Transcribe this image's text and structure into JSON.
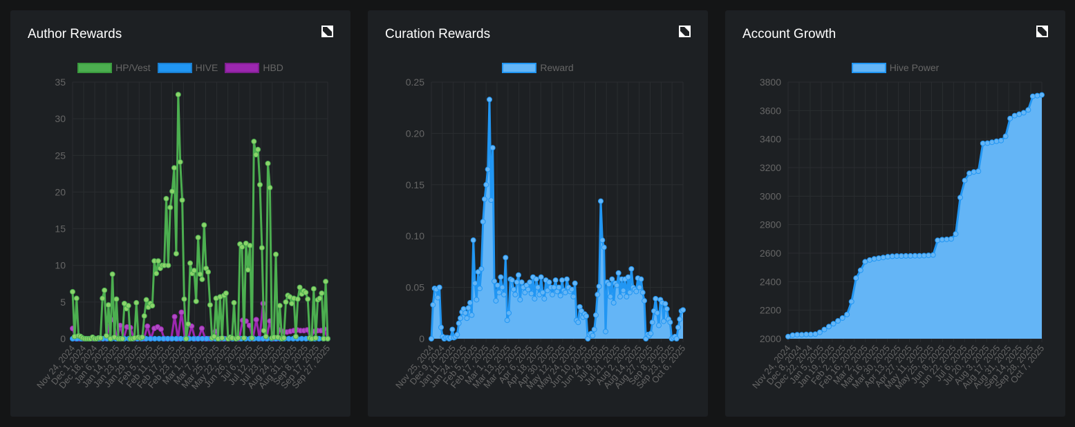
{
  "colors": {
    "green": "#4caf50",
    "green_point": "#8bd36a",
    "blue": "#2196f3",
    "blue_fill": "#64b5f6",
    "purple": "#9c27b0",
    "grid": "#2a2d30",
    "tick": "#666666"
  },
  "chart_data": [
    {
      "type": "line",
      "title": "Author Rewards",
      "ylim": [
        0,
        35
      ],
      "yticks": [
        0,
        5,
        10,
        15,
        20,
        25,
        30,
        35
      ],
      "legend_position": "top",
      "xtick_labels": [
        "Nov 24, 2024",
        "Dec 1, 2024",
        "Dec 18, 2024",
        "Jan 6, 2025",
        "Jan 14, 2025",
        "Jan 23, 2025",
        "Jan 29, 2025",
        "Feb 5, 2025",
        "Feb 11, 2025",
        "Feb 17, 2025",
        "Feb 23, 2025",
        "Mar 1, 2025",
        "Mar 7, 2025",
        "Mar 25, 2025",
        "May 22, 2025",
        "Jun 26, 2025",
        "Jul 6, 2025",
        "Jul 12, 2025",
        "Jul 23, 2025",
        "Aug 24, 2025",
        "Aug 31, 2025",
        "Sep 8, 2025",
        "Sep 17, 2025",
        "Sep 27, 2025"
      ],
      "series": [
        {
          "name": "HP/Vest",
          "color": "#4caf50",
          "values": [
            6.4,
            0.3,
            5.5,
            0.4,
            0.3,
            0.1,
            0,
            0,
            0,
            0,
            0.2,
            0,
            0,
            0.1,
            0.1,
            5.5,
            6.6,
            0.4,
            4.6,
            0,
            8.8,
            0.2,
            5.4,
            0,
            0,
            0,
            4.8,
            4.1,
            4.5,
            0,
            0,
            0.1,
            4.9,
            0.2,
            0.1,
            0.2,
            3.1,
            5.3,
            4.3,
            4.8,
            4.5,
            10.6,
            8.9,
            10.6,
            9.6,
            10,
            10,
            19.1,
            10,
            17.9,
            20.1,
            23.3,
            11.6,
            33.3,
            24.1,
            18.9,
            5.4,
            0,
            2,
            10.3,
            8.9,
            9.3,
            5.1,
            13.8,
            8.8,
            8.1,
            15.5,
            9.6,
            9.1,
            4.6,
            0.1,
            0.3,
            5.5,
            0,
            5.7,
            0.1,
            5.9,
            6.2,
            0,
            0.2,
            0.1,
            4.9,
            0,
            0.1,
            12.9,
            12.5,
            0.1,
            13,
            9.4,
            12.7,
            0.1,
            26.9,
            25.1,
            25.8,
            21,
            12.4,
            1.1,
            0.3,
            23.9,
            20.6,
            0.1,
            0.2,
            11.5,
            0.2,
            4.5,
            0,
            0.1,
            5,
            5.9,
            5.7,
            4.8,
            5.5,
            0.3,
            5.4,
            7,
            6.1,
            6.5,
            6.3,
            5.4,
            0.1,
            0,
            6.8,
            0.1,
            5.3,
            5.5,
            6.2,
            0,
            7.8,
            0
          ]
        },
        {
          "name": "HIVE",
          "color": "#2196f3",
          "values": [
            0,
            0,
            0,
            0,
            0,
            0,
            0,
            0,
            0,
            0,
            0,
            0,
            0,
            0,
            0,
            0,
            0,
            0,
            0,
            0,
            0,
            0,
            0,
            0,
            0,
            0,
            0,
            0,
            0,
            0,
            0,
            0,
            0,
            0,
            0,
            0,
            0,
            0,
            0,
            0,
            0,
            0,
            0,
            0,
            0,
            0,
            0,
            0,
            0,
            0,
            0,
            0,
            0,
            0,
            0,
            0,
            0,
            0,
            0,
            0
          ]
        },
        {
          "name": "HBD",
          "color": "#9c27b0",
          "values": [
            1.4,
            0,
            0,
            0,
            0,
            0,
            0,
            0,
            0,
            0,
            0,
            2.5,
            2.6,
            0,
            1.8,
            0,
            1.6,
            1.5,
            0,
            0,
            0,
            0,
            1.7,
            0,
            1.4,
            1.6,
            1.3,
            0,
            0,
            0,
            3,
            0,
            3.6,
            0,
            0,
            1.7,
            0,
            0,
            1.4,
            0,
            0,
            0,
            1,
            0,
            0,
            0,
            0,
            0,
            0,
            0,
            2.5,
            2.4,
            1.8,
            0,
            2.6,
            0,
            4.8,
            0,
            2.4,
            0,
            0,
            1.2,
            1,
            0.9,
            1,
            1.1,
            1.2,
            1.1,
            1.1,
            1.2,
            0,
            1,
            1.1,
            1.1,
            1.3,
            0
          ]
        }
      ]
    },
    {
      "type": "area",
      "title": "Curation Rewards",
      "ylim": [
        0,
        0.25
      ],
      "yticks": [
        0,
        0.05,
        0.1,
        0.15,
        0.2,
        0.25
      ],
      "legend_position": "top",
      "xtick_labels": [
        "Nov 25, 2024",
        "Dec 9, 2024",
        "Jan 11, 2025",
        "Jan 24, 2025",
        "Feb 5, 2025",
        "Feb 17, 2025",
        "Mar 1, 2025",
        "Mar 13, 2025",
        "Mar 25, 2025",
        "Apr 6, 2025",
        "Apr 18, 2025",
        "Apr 30, 2025",
        "May 12, 2025",
        "May 24, 2025",
        "Jun 10, 2025",
        "Jun 24, 2025",
        "Jul 8, 2025",
        "Jul 21, 2025",
        "Aug 2, 2025",
        "Aug 14, 2025",
        "Aug 27, 2025",
        "Sep 8, 2025",
        "Sep 23, 2025",
        "Oct 6, 2025"
      ],
      "series": [
        {
          "name": "Reward",
          "color": "#2196f3",
          "values": [
            0,
            0.033,
            0.049,
            0.048,
            0.04,
            0.05,
            0.011,
            0.002,
            0,
            0.001,
            0.001,
            0,
            0.001,
            0.009,
            0.001,
            0.002,
            0.004,
            0.015,
            0.02,
            0.026,
            0.029,
            0.025,
            0.02,
            0.03,
            0.035,
            0.023,
            0.096,
            0.054,
            0.038,
            0.065,
            0.049,
            0.068,
            0.114,
            0.136,
            0.15,
            0.165,
            0.233,
            0.135,
            0.186,
            0.056,
            0.037,
            0.052,
            0.045,
            0.06,
            0.05,
            0.043,
            0.079,
            0.018,
            0.025,
            0.058,
            0.057,
            0.048,
            0.043,
            0.055,
            0.062,
            0.038,
            0.055,
            0.05,
            0.045,
            0.052,
            0.048,
            0.055,
            0.044,
            0.06,
            0.039,
            0.058,
            0.05,
            0.043,
            0.06,
            0.045,
            0.039,
            0.057,
            0.047,
            0.055,
            0.05,
            0.043,
            0.05,
            0.057,
            0.046,
            0.05,
            0.042,
            0.057,
            0.047,
            0.045,
            0.058,
            0.05,
            0.046,
            0.048,
            0.041,
            0.054,
            0.018,
            0.016,
            0.031,
            0.027,
            0.021,
            0.024,
            0.022,
            0,
            0.004,
            0.005,
            0.003,
            0.009,
            0.023,
            0.043,
            0.051,
            0.134,
            0.096,
            0.089,
            0.007,
            0.055,
            0.053,
            0.041,
            0.058,
            0.035,
            0.054,
            0.052,
            0.064,
            0.041,
            0.058,
            0.047,
            0.058,
            0.041,
            0.06,
            0.045,
            0.068,
            0.05,
            0.048,
            0.046,
            0.059,
            0.05,
            0.058,
            0.045,
            0.037,
            0,
            0.004,
            0.003,
            0.005,
            0.016,
            0.027,
            0.039,
            0.025,
            0.013,
            0.038,
            0.035,
            0.017,
            0.034,
            0.029,
            0.019,
            0.016,
            0,
            0.001,
            0.002,
            0,
            0.011,
            0.019,
            0.027,
            0.028
          ]
        }
      ]
    },
    {
      "type": "area",
      "title": "Account Growth",
      "ylim": [
        2000,
        3800
      ],
      "yticks": [
        2000,
        2200,
        2400,
        2600,
        2800,
        3000,
        3200,
        3400,
        3600,
        3800
      ],
      "legend_position": "top",
      "xtick_labels": [
        "Nov 24, 2024",
        "Dec 8, 2024",
        "Dec 22, 2024",
        "Jan 5, 2025",
        "Jan 19, 2025",
        "Feb 2, 2025",
        "Feb 16, 2025",
        "Mar 2, 2025",
        "Mar 16, 2025",
        "Mar 30, 2025",
        "Apr 13, 2025",
        "Apr 27, 2025",
        "May 11, 2025",
        "May 25, 2025",
        "Jun 8, 2025",
        "Jun 22, 2025",
        "Jul 6, 2025",
        "Jul 20, 2025",
        "Aug 3, 2025",
        "Aug 17, 2025",
        "Aug 31, 2025",
        "Sep 14, 2025",
        "Sep 28, 2025",
        "Oct 7, 2025"
      ],
      "series": [
        {
          "name": "Hive Power",
          "color": "#2196f3",
          "values": [
            2015,
            2025,
            2028,
            2028,
            2030,
            2030,
            2032,
            2045,
            2065,
            2085,
            2105,
            2125,
            2145,
            2170,
            2260,
            2425,
            2480,
            2540,
            2552,
            2560,
            2565,
            2570,
            2575,
            2578,
            2580,
            2580,
            2581,
            2581,
            2582,
            2582,
            2583,
            2585,
            2587,
            2690,
            2695,
            2697,
            2700,
            2735,
            2990,
            3110,
            3160,
            3170,
            3175,
            3370,
            3372,
            3378,
            3385,
            3390,
            3420,
            3545,
            3565,
            3575,
            3585,
            3605,
            3700,
            3705,
            3710
          ]
        }
      ]
    }
  ]
}
